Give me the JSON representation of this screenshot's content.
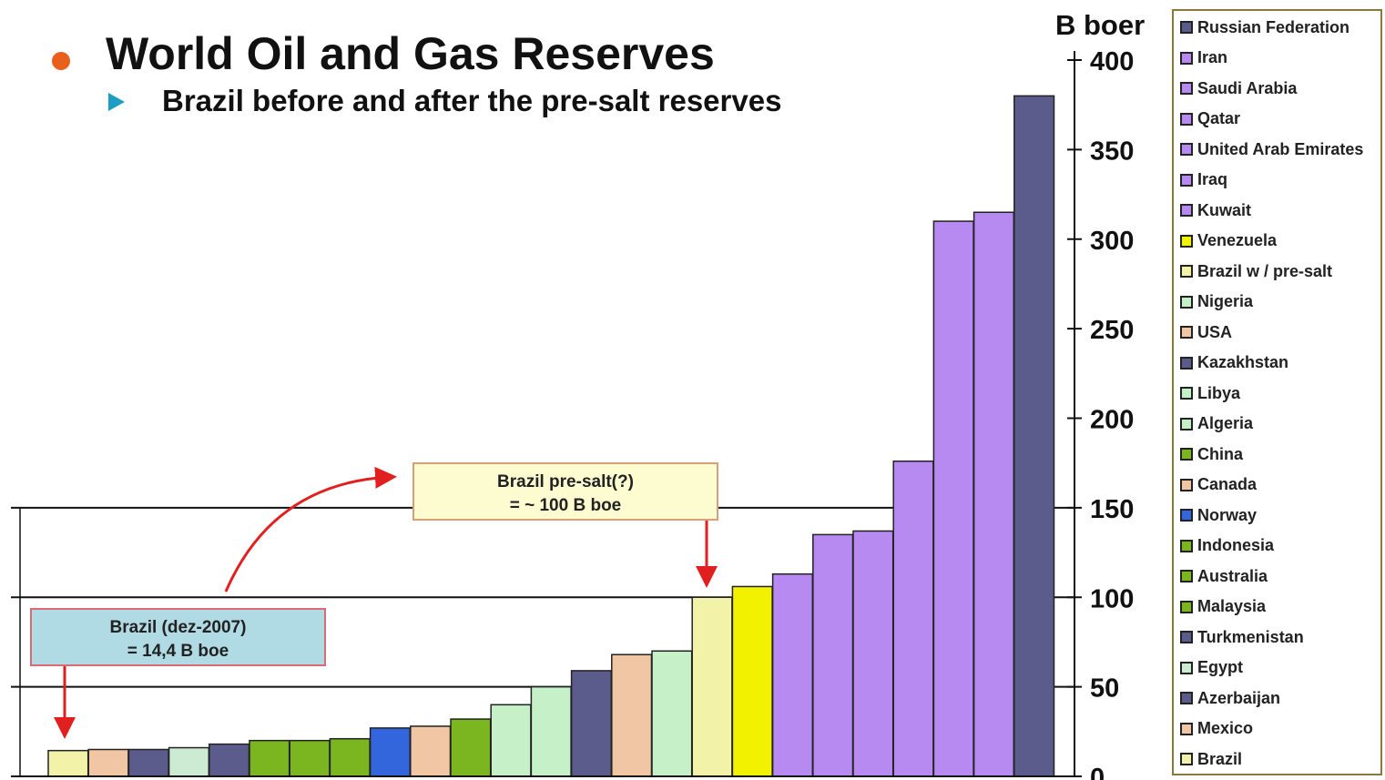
{
  "slide": {
    "title": "World Oil and Gas Reserves",
    "subtitle": "Brazil before and after the pre-salt reserves"
  },
  "callouts": {
    "presalt_line1": "Brazil pre-salt(?)",
    "presalt_line2": "= ~ 100 B boe",
    "brazil_line1": "Brazil (dez-2007)",
    "brazil_line2": "= 14,4 B boe"
  },
  "chart_data": {
    "type": "bar",
    "title": "World Oil and Gas Reserves",
    "ylabel": "B boer",
    "ylim": [
      0,
      400
    ],
    "yticks": [
      0,
      50,
      100,
      150,
      200,
      250,
      300,
      350,
      400
    ],
    "reference_lines": [
      50,
      100,
      150
    ],
    "categories": [
      "Brazil",
      "Mexico",
      "Azerbaijan",
      "Egypt",
      "Turkmenistan",
      "Malaysia",
      "Australia",
      "Indonesia",
      "Norway",
      "Canada",
      "China",
      "Algeria",
      "Libya",
      "Kazakhstan",
      "USA",
      "Nigeria",
      "Brazil w / pre-salt",
      "Venezuela",
      "Kuwait",
      "Iraq",
      "United Arab Emirates",
      "Qatar",
      "Saudi Arabia",
      "Iran",
      "Russian Federation"
    ],
    "values": [
      14.4,
      15,
      15,
      16,
      18,
      20,
      20,
      21,
      27,
      28,
      32,
      40,
      50,
      59,
      68,
      70,
      100,
      106,
      113,
      135,
      137,
      176,
      310,
      315,
      380
    ],
    "colors": [
      "#f2f2a8",
      "#f1c6a4",
      "#5b5b8c",
      "#cdebd2",
      "#5b5b8c",
      "#7bb51f",
      "#7bb51f",
      "#7bb51f",
      "#3366dd",
      "#f1c6a4",
      "#7bb51f",
      "#c6f0c8",
      "#c6f0c8",
      "#5b5b8c",
      "#f1c6a4",
      "#c6f0c8",
      "#f2f2a8",
      "#f2f200",
      "#b68af0",
      "#b68af0",
      "#b68af0",
      "#b68af0",
      "#b68af0",
      "#b68af0",
      "#5b5b8c"
    ],
    "legend": {
      "position": "right",
      "entries": [
        {
          "label": "Russian Federation",
          "color": "#5b5b8c"
        },
        {
          "label": "Iran",
          "color": "#b68af0"
        },
        {
          "label": "Saudi Arabia",
          "color": "#b68af0"
        },
        {
          "label": "Qatar",
          "color": "#b68af0"
        },
        {
          "label": "United Arab Emirates",
          "color": "#b68af0"
        },
        {
          "label": "Iraq",
          "color": "#b68af0"
        },
        {
          "label": "Kuwait",
          "color": "#b68af0"
        },
        {
          "label": "Venezuela",
          "color": "#f2f200"
        },
        {
          "label": "Brazil w / pre-salt",
          "color": "#f2f2a8"
        },
        {
          "label": "Nigeria",
          "color": "#c6f0c8"
        },
        {
          "label": "USA",
          "color": "#f1c6a4"
        },
        {
          "label": "Kazakhstan",
          "color": "#5b5b8c"
        },
        {
          "label": "Libya",
          "color": "#c6f0c8"
        },
        {
          "label": "Algeria",
          "color": "#c6f0c8"
        },
        {
          "label": "China",
          "color": "#7bb51f"
        },
        {
          "label": "Canada",
          "color": "#f1c6a4"
        },
        {
          "label": "Norway",
          "color": "#3366dd"
        },
        {
          "label": "Indonesia",
          "color": "#7bb51f"
        },
        {
          "label": "Australia",
          "color": "#7bb51f"
        },
        {
          "label": "Malaysia",
          "color": "#7bb51f"
        },
        {
          "label": "Turkmenistan",
          "color": "#5b5b8c"
        },
        {
          "label": "Egypt",
          "color": "#cdebd2"
        },
        {
          "label": "Azerbaijan",
          "color": "#5b5b8c"
        },
        {
          "label": "Mexico",
          "color": "#f1c6a4"
        },
        {
          "label": "Brazil",
          "color": "#f2f2a8"
        }
      ]
    }
  }
}
